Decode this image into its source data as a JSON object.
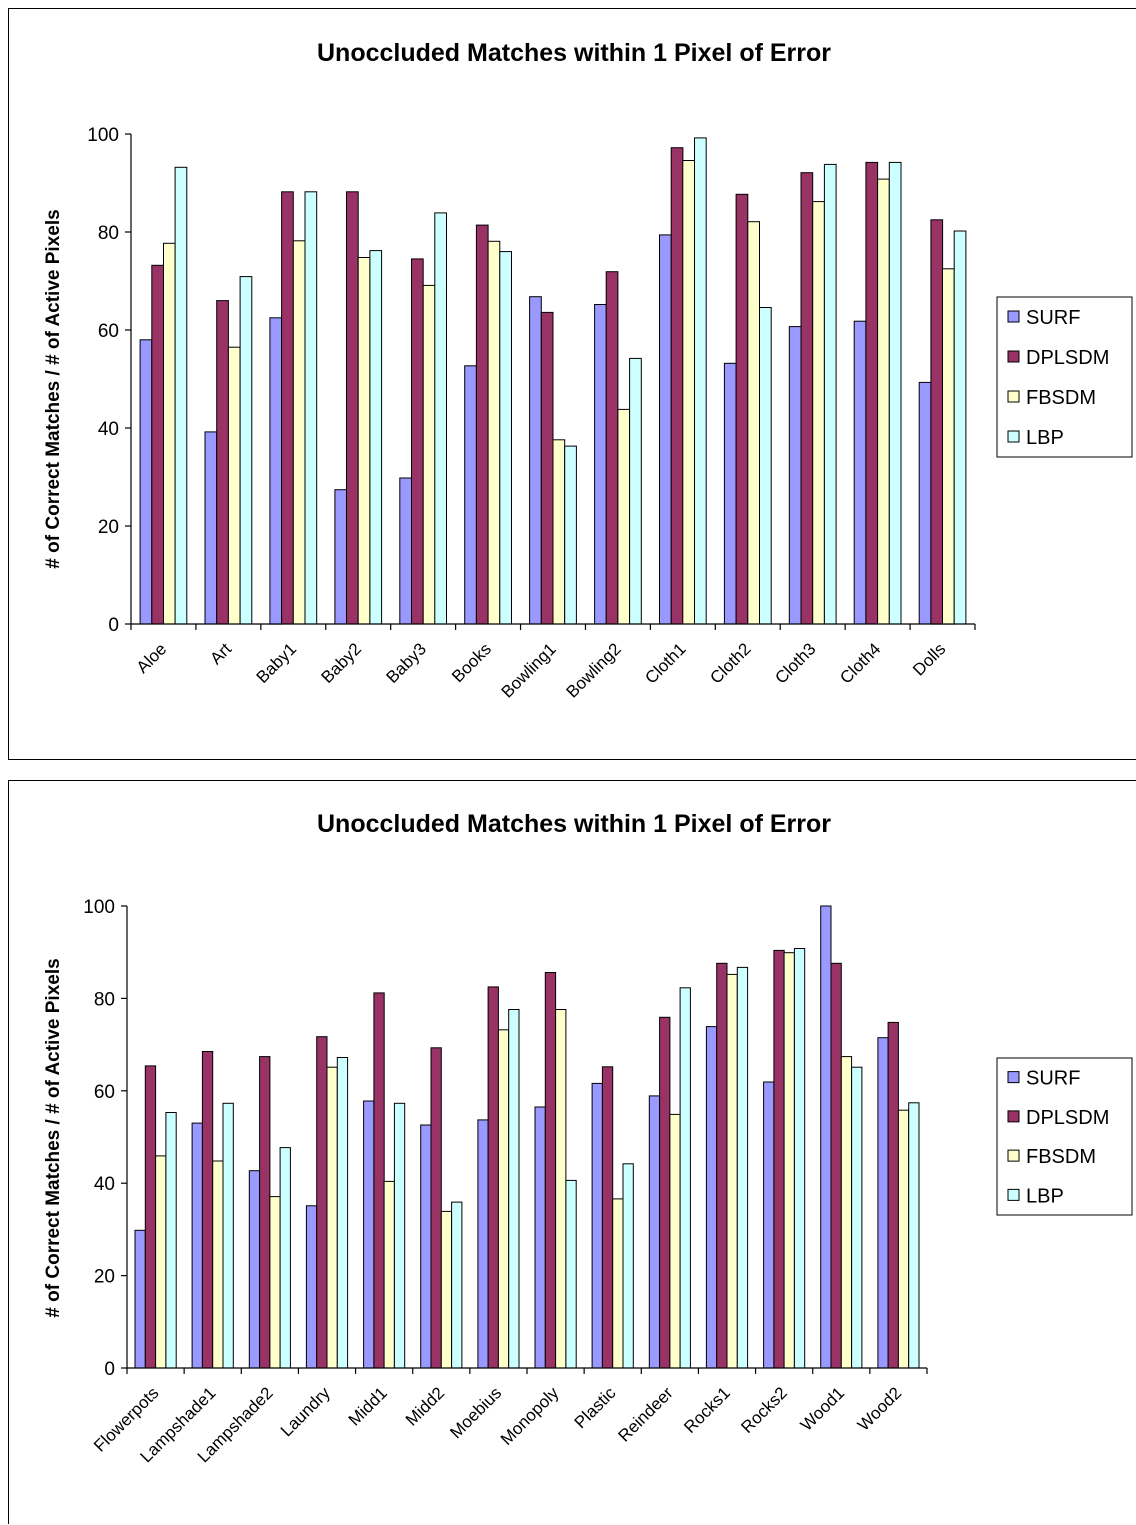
{
  "legend_colors": [
    "#9999ff",
    "#993366",
    "#ffffcc",
    "#ccffff"
  ],
  "chart_data": [
    {
      "type": "bar",
      "title": "Unoccluded Matches within 1 Pixel of Error",
      "xlabel": "",
      "ylabel": "# of Correct Matches / # of Active Pixels",
      "ylim": [
        0,
        100
      ],
      "yticks": [
        0,
        20,
        40,
        60,
        80,
        100
      ],
      "grid": false,
      "legend_position": "right",
      "categories": [
        "Aloe",
        "Art",
        "Baby1",
        "Baby2",
        "Baby3",
        "Books",
        "Bowling1",
        "Bowling2",
        "Cloth1",
        "Cloth2",
        "Cloth3",
        "Cloth4",
        "Dolls"
      ],
      "series": [
        {
          "name": "SURF",
          "values": [
            58,
            39.2,
            62.5,
            27.4,
            29.8,
            52.7,
            66.8,
            65.2,
            79.4,
            53.2,
            60.7,
            61.8,
            49.3
          ]
        },
        {
          "name": "DPLSDM",
          "values": [
            73.2,
            66,
            88.2,
            88.2,
            74.5,
            81.4,
            63.6,
            71.9,
            97.2,
            87.7,
            92.1,
            94.2,
            82.5
          ]
        },
        {
          "name": "FBSDM",
          "values": [
            77.7,
            56.5,
            78.2,
            74.8,
            69.1,
            78.1,
            37.6,
            43.8,
            94.6,
            82.1,
            86.2,
            90.8,
            72.5
          ]
        },
        {
          "name": "LBP",
          "values": [
            93.2,
            70.9,
            88.2,
            76.2,
            83.9,
            76,
            36.3,
            54.2,
            99.2,
            64.6,
            93.8,
            94.2,
            80.2
          ]
        }
      ]
    },
    {
      "type": "bar",
      "title": "Unoccluded Matches within 1 Pixel of Error",
      "xlabel": "",
      "ylabel": "# of Correct Matches / # of Active Pixels",
      "ylim": [
        0,
        100
      ],
      "yticks": [
        0,
        20,
        40,
        60,
        80,
        100
      ],
      "grid": false,
      "legend_position": "right",
      "categories": [
        "Flowerpots",
        "Lampshade1",
        "Lampshade2",
        "Laundry",
        "Midd1",
        "Midd2",
        "Moebius",
        "Monopoly",
        "Plastic",
        "Reindeer",
        "Rocks1",
        "Rocks2",
        "Wood1",
        "Wood2"
      ],
      "series": [
        {
          "name": "SURF",
          "values": [
            29.8,
            53,
            42.7,
            35.1,
            57.8,
            52.6,
            53.7,
            56.5,
            61.6,
            58.9,
            73.9,
            61.9,
            100,
            71.5
          ]
        },
        {
          "name": "DPLSDM",
          "values": [
            65.4,
            68.5,
            67.4,
            71.7,
            81.2,
            69.3,
            82.5,
            85.6,
            65.2,
            75.9,
            87.6,
            90.4,
            87.6,
            74.8
          ]
        },
        {
          "name": "FBSDM",
          "values": [
            45.9,
            44.8,
            37.1,
            65.1,
            40.4,
            33.9,
            73.2,
            77.6,
            36.6,
            54.9,
            85.2,
            89.9,
            67.4,
            55.8
          ]
        },
        {
          "name": "LBP",
          "values": [
            55.3,
            57.3,
            47.7,
            67.2,
            57.3,
            35.9,
            77.6,
            40.6,
            44.2,
            82.3,
            86.7,
            90.8,
            65.1,
            57.4
          ]
        }
      ]
    }
  ]
}
